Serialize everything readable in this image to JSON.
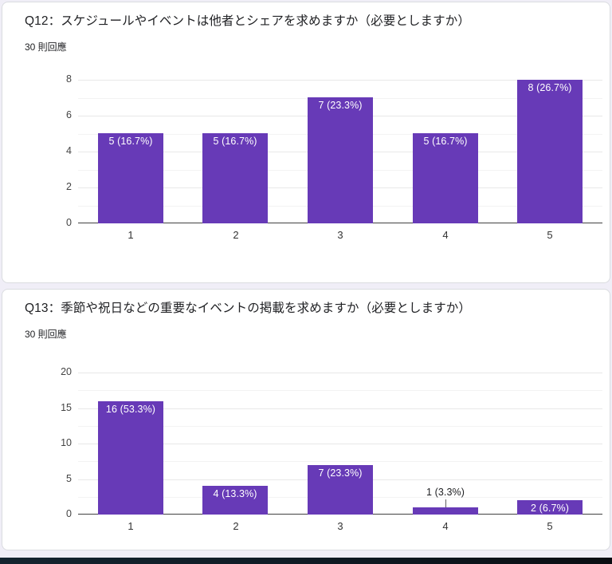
{
  "page": {
    "background_color": "#f0eef7",
    "card_color": "#ffffff",
    "taskbar_color": "#101c26"
  },
  "cards": [
    {
      "title": "Q12：スケジュールやイベントは他者とシェアを求めますか（必要としますか）",
      "responses": "30 則回應"
    },
    {
      "title": "Q13：季節や祝日などの重要なイベントの掲載を求めますか（必要としますか）",
      "responses": "30 則回應"
    }
  ],
  "chart_data": [
    {
      "type": "bar",
      "title": "Q12：スケジュールやイベントは他者とシェアを求めますか（必要としますか）",
      "subtitle": "30 則回應",
      "categories": [
        "1",
        "2",
        "3",
        "4",
        "5"
      ],
      "values": [
        5,
        5,
        7,
        5,
        8
      ],
      "value_labels": [
        "5 (16.7%)",
        "5 (16.7%)",
        "7 (23.3%)",
        "5 (16.7%)",
        "8 (26.7%)"
      ],
      "label_positions": [
        "inside",
        "inside",
        "inside",
        "inside",
        "inside"
      ],
      "xlabel": "",
      "ylabel": "",
      "ylim": [
        0,
        8
      ],
      "yticks": [
        0,
        2,
        4,
        6,
        8
      ],
      "grid": true,
      "legend": "none",
      "bar_color": "#673ab7"
    },
    {
      "type": "bar",
      "title": "Q13：季節や祝日などの重要なイベントの掲載を求めますか（必要としますか）",
      "subtitle": "30 則回應",
      "categories": [
        "1",
        "2",
        "3",
        "4",
        "5"
      ],
      "values": [
        16,
        4,
        7,
        1,
        2
      ],
      "value_labels": [
        "16 (53.3%)",
        "4 (13.3%)",
        "7 (23.3%)",
        "1 (3.3%)",
        "2 (6.7%)"
      ],
      "label_positions": [
        "inside",
        "inside",
        "inside",
        "above",
        "inside"
      ],
      "xlabel": "",
      "ylabel": "",
      "ylim": [
        0,
        20
      ],
      "yticks": [
        0,
        5,
        10,
        15,
        20
      ],
      "grid": true,
      "legend": "none",
      "bar_color": "#673ab7"
    }
  ]
}
